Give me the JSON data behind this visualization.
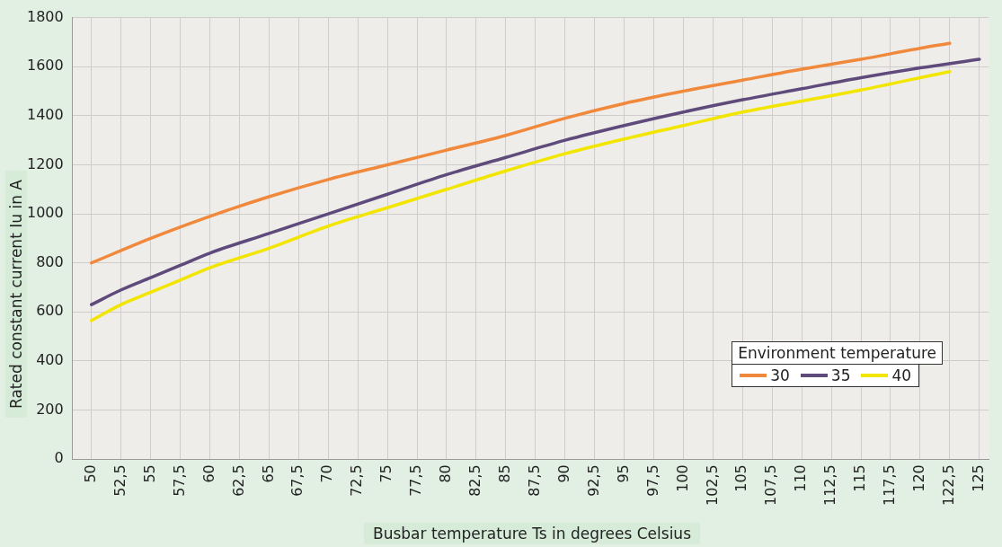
{
  "chart_data": {
    "type": "line",
    "xlabel": "Busbar temperature Ts in degrees Celsius",
    "ylabel": "Rated constant current Iu in A",
    "legend_title": "Environment temperature",
    "legend": "bottom right",
    "grid": true,
    "marker": "none",
    "line_style": "solid",
    "xlim": [
      48.4,
      125.8
    ],
    "ylim": [
      0,
      1800
    ],
    "xticks": [
      50,
      {
        "value": 52.5,
        "label": "52,5"
      },
      55,
      {
        "value": 57.5,
        "label": "57,5"
      },
      60,
      {
        "value": 62.5,
        "label": "62,5"
      },
      65,
      {
        "value": 67.5,
        "label": "67,5"
      },
      70,
      {
        "value": 72.5,
        "label": "72,5"
      },
      75,
      {
        "value": 77.5,
        "label": "77,5"
      },
      80,
      {
        "value": 82.5,
        "label": "82,5"
      },
      85,
      {
        "value": 87.5,
        "label": "87,5"
      },
      90,
      {
        "value": 92.5,
        "label": "92,5"
      },
      95,
      {
        "value": 97.5,
        "label": "97,5"
      },
      100,
      {
        "value": 102.5,
        "label": "102,5"
      },
      105,
      {
        "value": 107.5,
        "label": "107,5"
      },
      110,
      {
        "value": 112.5,
        "label": "112,5"
      },
      115,
      {
        "value": 117.5,
        "label": "117,5"
      },
      120,
      {
        "value": 122.5,
        "label": "122,5"
      },
      125
    ],
    "yticks": [
      0,
      200,
      400,
      600,
      800,
      1000,
      1200,
      1400,
      1600,
      1800
    ],
    "series": [
      {
        "name": "30",
        "color": "#f0893c",
        "x": [
          50,
          55,
          60,
          65,
          70,
          75,
          80,
          85,
          90,
          95,
          100,
          105,
          110,
          115,
          120,
          122.5
        ],
        "values": [
          800,
          900,
          990,
          1070,
          1140,
          1200,
          1260,
          1320,
          1390,
          1450,
          1500,
          1545,
          1590,
          1630,
          1675,
          1695
        ]
      },
      {
        "name": "35",
        "color": "#5e4b7b",
        "x": [
          50,
          52.5,
          55,
          57.5,
          60,
          65,
          70,
          75,
          80,
          85,
          90,
          95,
          100,
          105,
          110,
          115,
          120,
          125
        ],
        "values": [
          630,
          690,
          740,
          790,
          840,
          920,
          1000,
          1080,
          1160,
          1230,
          1300,
          1360,
          1415,
          1465,
          1510,
          1555,
          1595,
          1630
        ]
      },
      {
        "name": "40",
        "color": "#f2e500",
        "x": [
          50,
          52.5,
          55,
          57.5,
          60,
          65,
          70,
          75,
          80,
          85,
          90,
          95,
          100,
          105,
          110,
          115,
          120,
          122.5
        ],
        "values": [
          565,
          630,
          680,
          730,
          780,
          860,
          950,
          1025,
          1100,
          1175,
          1245,
          1305,
          1360,
          1415,
          1460,
          1505,
          1555,
          1580
        ]
      }
    ]
  }
}
